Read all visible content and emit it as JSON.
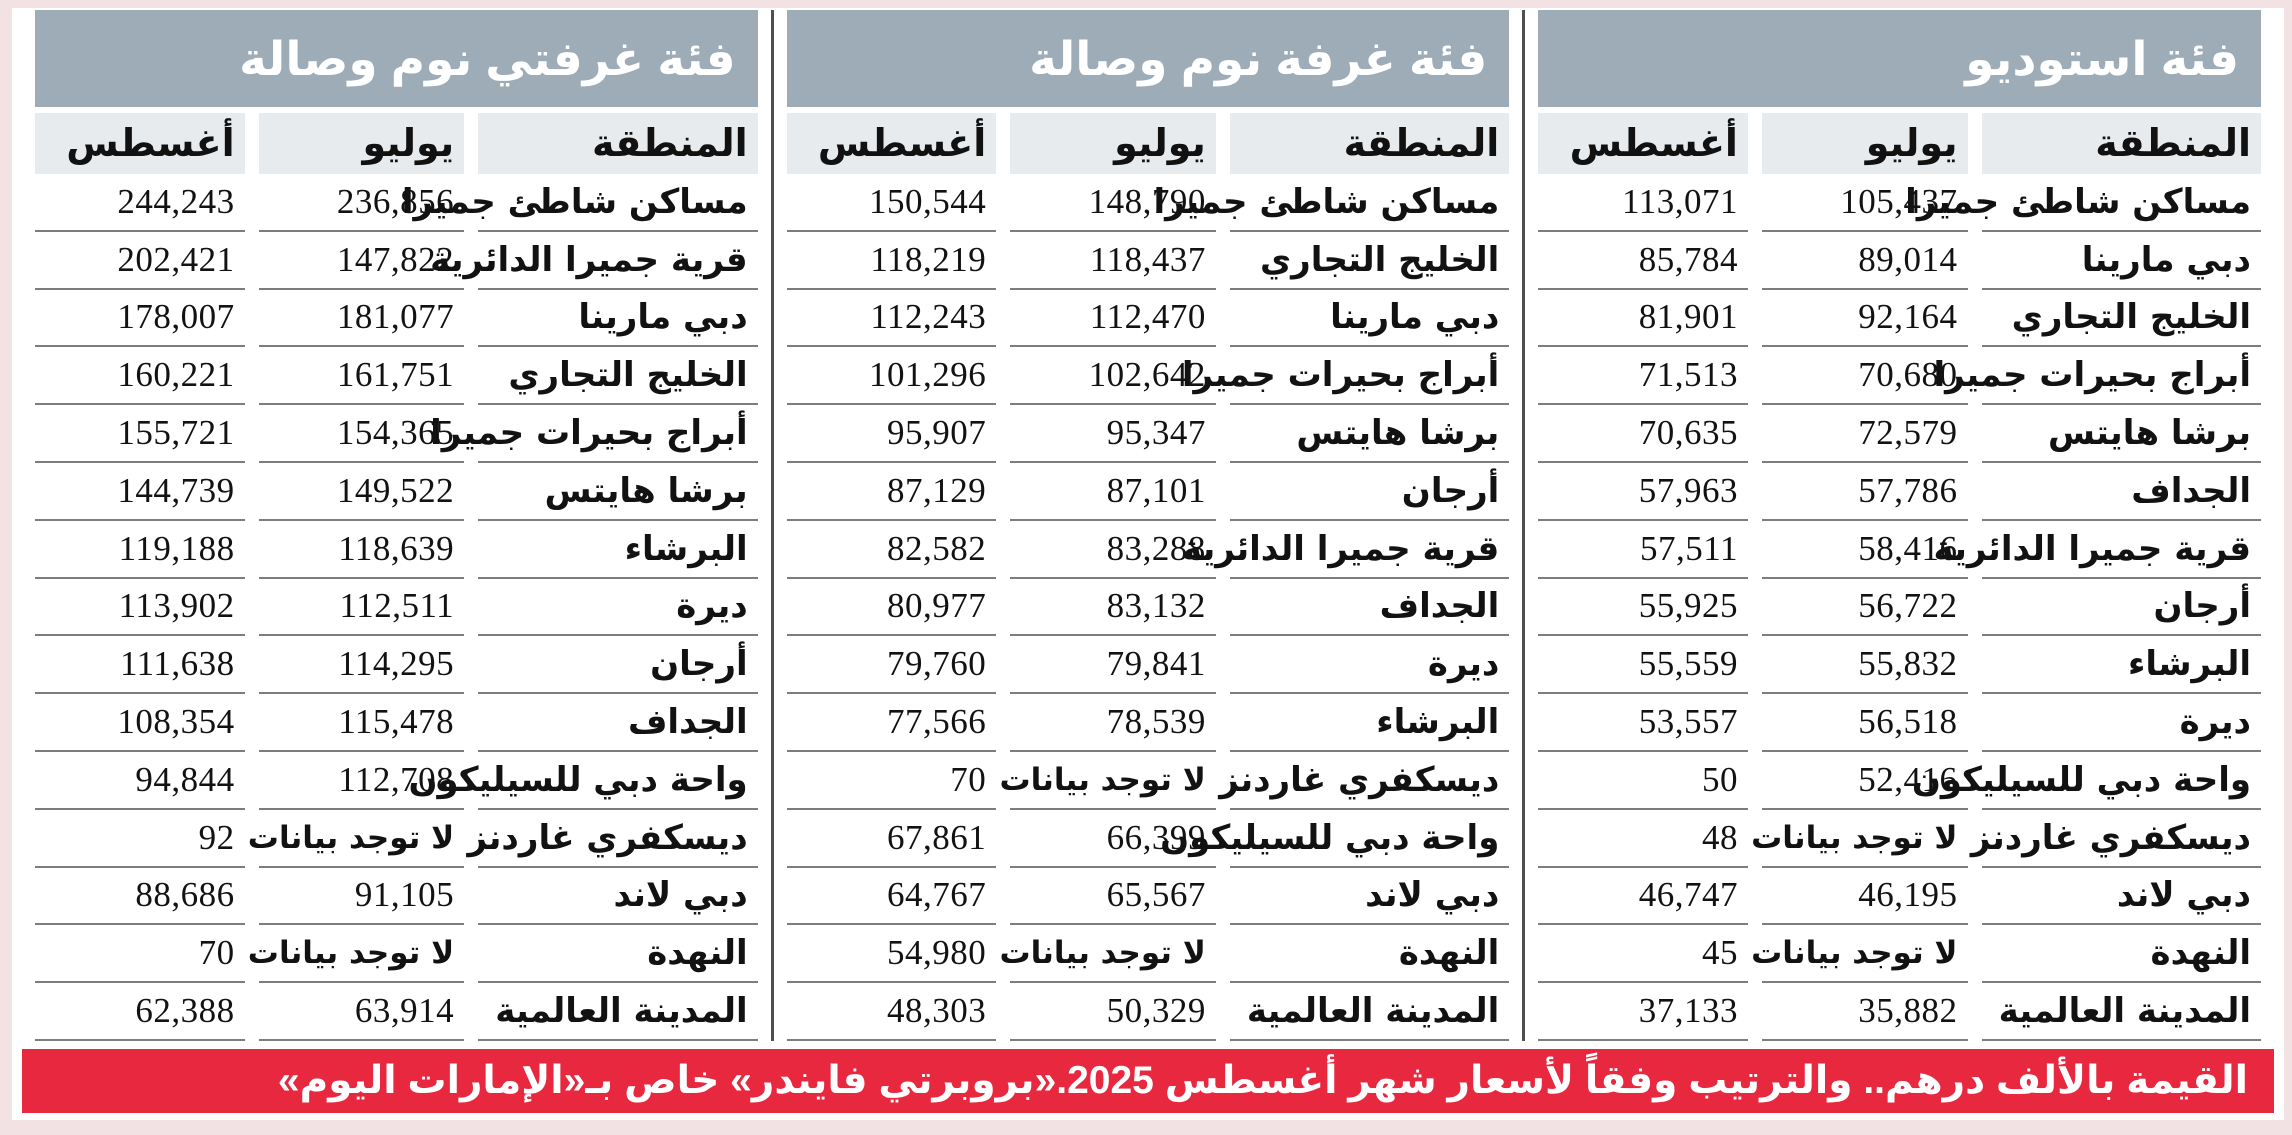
{
  "colors": {
    "page_bg": "#f3e2e3",
    "title_bar": "#9dacb7",
    "column_header_bg": "#e8ebee",
    "banner_red": "#e7283f"
  },
  "no_data_label": "لا توجد بيانات",
  "tables": [
    {
      "id": "studio",
      "title": "فئة استوديو",
      "columns": {
        "area": "المنطقة",
        "july": "يوليو",
        "august": "أغسطس"
      },
      "rows": [
        {
          "area": "مساكن شاطئ جميرا",
          "july": "105,437",
          "august": "113,071"
        },
        {
          "area": "دبي مارينا",
          "july": "89,014",
          "august": "85,784"
        },
        {
          "area": "الخليج التجاري",
          "july": "92,164",
          "august": "81,901"
        },
        {
          "area": "أبراج بحيرات جميرا",
          "july": "70,680",
          "august": "71,513"
        },
        {
          "area": "برشا هايتس",
          "july": "72,579",
          "august": "70,635"
        },
        {
          "area": "الجداف",
          "july": "57,786",
          "august": "57,963"
        },
        {
          "area": "قرية جميرا الدائرية",
          "july": "58,416",
          "august": "57,511"
        },
        {
          "area": "أرجان",
          "july": "56,722",
          "august": "55,925"
        },
        {
          "area": "البرشاء",
          "july": "55,832",
          "august": "55,559"
        },
        {
          "area": "ديرة",
          "july": "56,518",
          "august": "53,557"
        },
        {
          "area": "واحة دبي للسيليكون",
          "july": "52,416",
          "august": "50"
        },
        {
          "area": "ديسكفري غاردنز",
          "july": "لا توجد بيانات",
          "august": "48"
        },
        {
          "area": "دبي لاند",
          "july": "46,195",
          "august": "46,747"
        },
        {
          "area": "النهدة",
          "july": "لا توجد بيانات",
          "august": "45"
        },
        {
          "area": "المدينة العالمية",
          "july": "35,882",
          "august": "37,133"
        }
      ]
    },
    {
      "id": "one-bedroom-hall",
      "title": "فئة غرفة نوم وصالة",
      "columns": {
        "area": "المنطقة",
        "july": "يوليو",
        "august": "أغسطس"
      },
      "rows": [
        {
          "area": "مساكن شاطئ جميرا",
          "july": "148,790",
          "august": "150,544"
        },
        {
          "area": "الخليج التجاري",
          "july": "118,437",
          "august": "118,219"
        },
        {
          "area": "دبي مارينا",
          "july": "112,470",
          "august": "112,243"
        },
        {
          "area": "أبراج بحيرات جميرا",
          "july": "102,642",
          "august": "101,296"
        },
        {
          "area": "برشا هايتس",
          "july": "95,347",
          "august": "95,907"
        },
        {
          "area": "أرجان",
          "july": "87,101",
          "august": "87,129"
        },
        {
          "area": "قرية جميرا الدائرية",
          "july": "83,288",
          "august": "82,582"
        },
        {
          "area": "الجداف",
          "july": "83,132",
          "august": "80,977"
        },
        {
          "area": "ديرة",
          "july": "79,841",
          "august": "79,760"
        },
        {
          "area": "البرشاء",
          "july": "78,539",
          "august": "77,566"
        },
        {
          "area": "ديسكفري غاردنز",
          "july": "لا توجد بيانات",
          "august": "70"
        },
        {
          "area": "واحة دبي للسيليكون",
          "july": "66,399",
          "august": "67,861"
        },
        {
          "area": "دبي لاند",
          "july": "65,567",
          "august": "64,767"
        },
        {
          "area": "النهدة",
          "july": "لا توجد بيانات",
          "august": "54,980"
        },
        {
          "area": "المدينة العالمية",
          "july": "50,329",
          "august": "48,303"
        }
      ]
    },
    {
      "id": "two-bedroom-hall",
      "title": "فئة غرفتي نوم وصالة",
      "columns": {
        "area": "المنطقة",
        "july": "يوليو",
        "august": "أغسطس"
      },
      "rows": [
        {
          "area": "مساكن شاطئ جميرا",
          "july": "236,856",
          "august": "244,243"
        },
        {
          "area": "قرية جميرا الدائرية",
          "july": "147,822",
          "august": "202,421"
        },
        {
          "area": "دبي مارينا",
          "july": "181,077",
          "august": "178,007"
        },
        {
          "area": "الخليج التجاري",
          "july": "161,751",
          "august": "160,221"
        },
        {
          "area": "أبراج بحيرات جميرا",
          "july": "154,365",
          "august": "155,721"
        },
        {
          "area": "برشا هايتس",
          "july": "149,522",
          "august": "144,739"
        },
        {
          "area": "البرشاء",
          "july": "118,639",
          "august": "119,188"
        },
        {
          "area": "ديرة",
          "july": "112,511",
          "august": "113,902"
        },
        {
          "area": "أرجان",
          "july": "114,295",
          "august": "111,638"
        },
        {
          "area": "الجداف",
          "july": "115,478",
          "august": "108,354"
        },
        {
          "area": "واحة دبي للسيليكون",
          "july": "112,708",
          "august": "94,844"
        },
        {
          "area": "ديسكفري غاردنز",
          "july": "لا توجد بيانات",
          "august": "92"
        },
        {
          "area": "دبي لاند",
          "july": "91,105",
          "august": "88,686"
        },
        {
          "area": "النهدة",
          "july": "لا توجد بيانات",
          "august": "70"
        },
        {
          "area": "المدينة العالمية",
          "july": "63,914",
          "august": "62,388"
        }
      ]
    }
  ],
  "footer": {
    "note": "القيمة بالألف درهم.. والترتيب وفقاً لأسعار شهر أغسطس 2025.",
    "credit": "«بروبرتي فايندر» خاص بـ«الإمارات اليوم»"
  }
}
